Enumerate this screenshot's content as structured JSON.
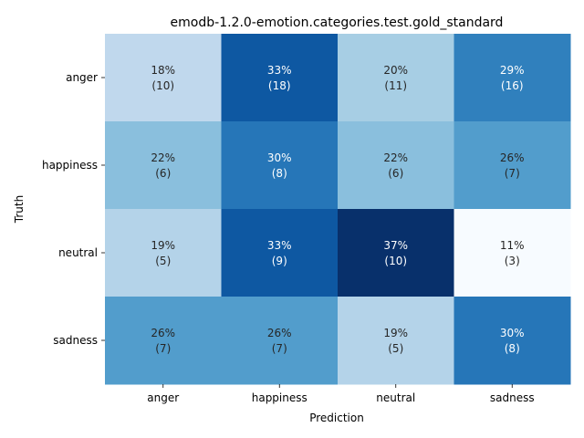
{
  "chart_data": {
    "type": "heatmap",
    "title": "emodb-1.2.0-emotion.categories.test.gold_standard",
    "xlabel": "Prediction",
    "ylabel": "Truth",
    "x_categories": [
      "anger",
      "happiness",
      "neutral",
      "sadness"
    ],
    "y_categories": [
      "anger",
      "happiness",
      "neutral",
      "sadness"
    ],
    "cells": [
      [
        {
          "percent": "18%",
          "count": "(10)",
          "value": 0.18
        },
        {
          "percent": "33%",
          "count": "(18)",
          "value": 0.33
        },
        {
          "percent": "20%",
          "count": "(11)",
          "value": 0.2
        },
        {
          "percent": "29%",
          "count": "(16)",
          "value": 0.29
        }
      ],
      [
        {
          "percent": "22%",
          "count": "(6)",
          "value": 0.22
        },
        {
          "percent": "30%",
          "count": "(8)",
          "value": 0.3
        },
        {
          "percent": "22%",
          "count": "(6)",
          "value": 0.22
        },
        {
          "percent": "26%",
          "count": "(7)",
          "value": 0.26
        }
      ],
      [
        {
          "percent": "19%",
          "count": "(5)",
          "value": 0.19
        },
        {
          "percent": "33%",
          "count": "(9)",
          "value": 0.33
        },
        {
          "percent": "37%",
          "count": "(10)",
          "value": 0.37
        },
        {
          "percent": "11%",
          "count": "(3)",
          "value": 0.11
        }
      ],
      [
        {
          "percent": "26%",
          "count": "(7)",
          "value": 0.26
        },
        {
          "percent": "26%",
          "count": "(7)",
          "value": 0.26
        },
        {
          "percent": "19%",
          "count": "(5)",
          "value": 0.19
        },
        {
          "percent": "30%",
          "count": "(8)",
          "value": 0.3
        }
      ]
    ],
    "colormap": "Blues",
    "colorbar": false,
    "grid": false
  }
}
